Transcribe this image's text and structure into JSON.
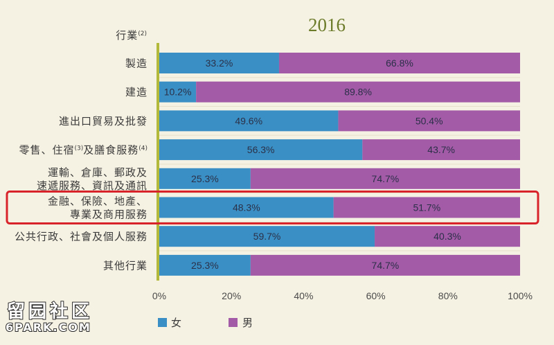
{
  "chart_data": {
    "type": "bar",
    "orientation": "horizontal",
    "stacked": true,
    "title": "2016",
    "ylabel": "行業(2)",
    "categories": [
      "製造",
      "建造",
      "進出口貿易及批發",
      "零售、住宿(3)及膳食服務(4)",
      "運輸、倉庫、郵政及\n速遞服務、資訊及通訊",
      "金融、保險、地產、\n專業及商用服務",
      "公共行政、社會及個人服務",
      "其他行業"
    ],
    "series": [
      {
        "name": "女",
        "color": "#3a90c5",
        "values": [
          33.2,
          10.2,
          49.6,
          56.3,
          25.3,
          48.3,
          59.7,
          25.3
        ]
      },
      {
        "name": "男",
        "color": "#a35aa7",
        "values": [
          66.8,
          89.8,
          50.4,
          43.7,
          74.7,
          51.7,
          40.3,
          74.7
        ]
      }
    ],
    "value_suffix": "%",
    "xlim": [
      0,
      100
    ],
    "xticks": [
      "0%",
      "20%",
      "40%",
      "60%",
      "80%",
      "100%"
    ],
    "grid": false,
    "legend": "bottom-left",
    "highlight": {
      "category_index": 5,
      "color": "#d9232a"
    }
  },
  "theme": {
    "background": "#f6f2e3",
    "title_color": "#6b7b2a",
    "axis_color": "#b3b93a",
    "text_color": "#3b3b3b",
    "separator_color": "#e6dfca"
  },
  "watermark": {
    "line1": "留园社区",
    "line2": "6PARK.COM"
  }
}
